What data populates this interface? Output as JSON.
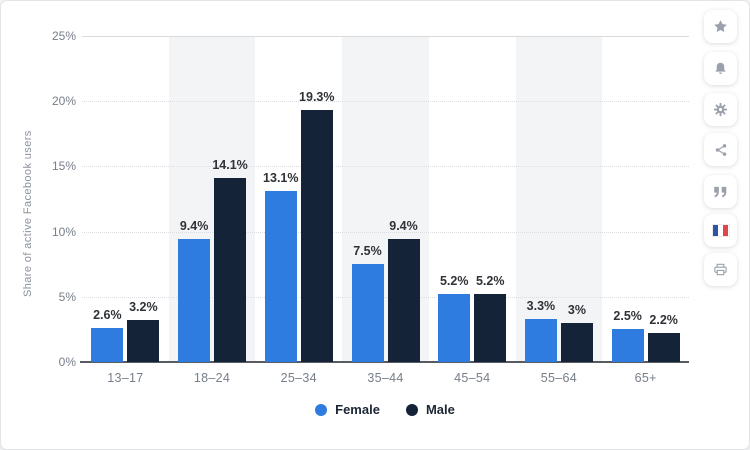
{
  "chart_data": {
    "type": "bar",
    "title": "",
    "xlabel": "",
    "ylabel": "Share of active Facebook users",
    "categories": [
      "13–17",
      "18–24",
      "25–34",
      "35–44",
      "45–54",
      "55–64",
      "65+"
    ],
    "series": [
      {
        "name": "Female",
        "color": "#2e7ce0",
        "values": [
          2.6,
          9.4,
          13.1,
          7.5,
          5.2,
          3.3,
          2.5
        ],
        "labels": [
          "2.6%",
          "9.4%",
          "13.1%",
          "7.5%",
          "5.2%",
          "3.3%",
          "2.5%"
        ]
      },
      {
        "name": "Male",
        "color": "#152339",
        "values": [
          3.2,
          14.1,
          19.3,
          9.4,
          5.2,
          3.0,
          2.2
        ],
        "labels": [
          "3.2%",
          "14.1%",
          "19.3%",
          "9.4%",
          "5.2%",
          "3%",
          "2.2%"
        ]
      }
    ],
    "y_ticks": [
      {
        "label": "0%",
        "value": 0
      },
      {
        "label": "5%",
        "value": 5
      },
      {
        "label": "10%",
        "value": 10
      },
      {
        "label": "15%",
        "value": 15
      },
      {
        "label": "20%",
        "value": 20
      },
      {
        "label": "25%",
        "value": 25
      }
    ],
    "ylim": [
      0,
      25
    ],
    "grid": true,
    "legend_position": "bottom",
    "band_color": "#f3f4f6",
    "axis_line_color": "#585c62"
  },
  "toolbar": {
    "buttons": [
      {
        "icon": "star-icon"
      },
      {
        "icon": "bell-icon"
      },
      {
        "icon": "gear-icon"
      },
      {
        "icon": "share-icon"
      },
      {
        "icon": "quote-icon"
      },
      {
        "icon": "french-flag-icon"
      },
      {
        "icon": "printer-icon"
      }
    ]
  }
}
